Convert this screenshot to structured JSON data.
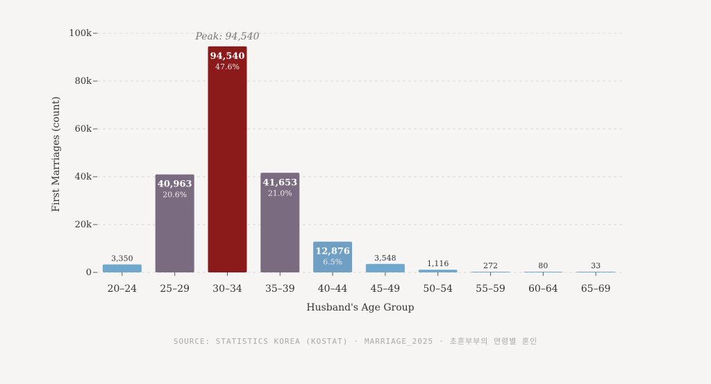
{
  "chart_data": {
    "type": "bar",
    "title": "",
    "xlabel": "Husband's Age Group",
    "ylabel": "First Marriages (count)",
    "ylim": [
      0,
      100000
    ],
    "yticks": [
      0,
      20000,
      40000,
      60000,
      80000,
      100000
    ],
    "ytick_labels": [
      "0",
      "20k",
      "40k",
      "60k",
      "80k",
      "100k"
    ],
    "grid": true,
    "categories": [
      "20–24",
      "25–29",
      "30–34",
      "35–39",
      "40–44",
      "45–49",
      "50–54",
      "55–59",
      "60–64",
      "65–69"
    ],
    "values": [
      3350,
      40963,
      94540,
      41653,
      12876,
      3548,
      1116,
      272,
      80,
      33
    ],
    "value_labels": [
      "3,350",
      "40,963",
      "94,540",
      "41,653",
      "12,876",
      "3,548",
      "1,116",
      "272",
      "80",
      "33"
    ],
    "percent_labels": [
      "",
      "20.6%",
      "47.6%",
      "21.0%",
      "6.5%",
      "",
      "",
      "",
      "",
      ""
    ],
    "bar_colors": [
      "#6fa8cc",
      "#7a6b80",
      "#8b1a1a",
      "#7a6b80",
      "#6fa0c4",
      "#6fa8cc",
      "#6fa8cc",
      "#6fa8cc",
      "#6fa8cc",
      "#6fa8cc"
    ],
    "annotation": "Peak: 94,540"
  },
  "footer": {
    "source": "SOURCE: STATISTICS KOREA (KOSTAT)",
    "dataset": "MARRIAGE_2025",
    "subtitle_kr": "초혼부부의 연령별 혼인"
  },
  "colors": {
    "background": "#f7f5f4",
    "grid": "#d9d6d4",
    "axis_text": "#333333"
  }
}
